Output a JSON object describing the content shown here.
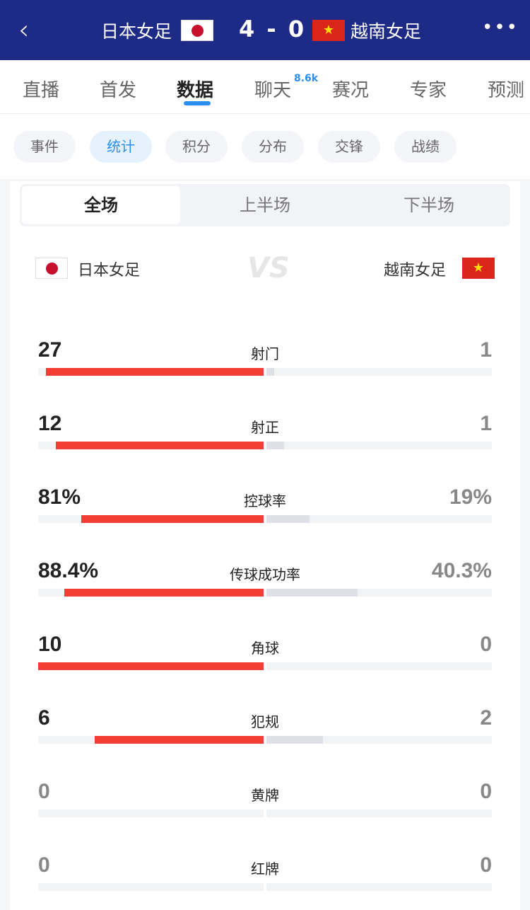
{
  "header": {
    "back_icon": "chevron-left-icon",
    "home_team": "日本女足",
    "score": "4 - 0",
    "away_team": "越南女足",
    "more_icon": "more-dots-icon"
  },
  "tabs": [
    {
      "label": "直播"
    },
    {
      "label": "首发"
    },
    {
      "label": "数据",
      "active": true
    },
    {
      "label": "聊天",
      "badge": "8.6k"
    },
    {
      "label": "赛况"
    },
    {
      "label": "专家"
    },
    {
      "label": "预测"
    }
  ],
  "chips": [
    {
      "label": "事件"
    },
    {
      "label": "统计",
      "active": true
    },
    {
      "label": "积分"
    },
    {
      "label": "分布"
    },
    {
      "label": "交锋"
    },
    {
      "label": "战绩"
    }
  ],
  "segments": [
    {
      "label": "全场",
      "active": true
    },
    {
      "label": "上半场"
    },
    {
      "label": "下半场"
    }
  ],
  "teams": {
    "home": "日本女足",
    "away": "越南女足",
    "vs": "VS"
  },
  "colors": {
    "header": "#1d2a86",
    "accent": "#2a8ff0",
    "home_bar": "#f23d35",
    "away_bar": "#dde0e5"
  },
  "stats": [
    {
      "label": "射门",
      "home": "27",
      "away": "1",
      "home_share": 0.964,
      "away_share": 0.036
    },
    {
      "label": "射正",
      "home": "12",
      "away": "1",
      "home_share": 0.923,
      "away_share": 0.077
    },
    {
      "label": "控球率",
      "home": "81%",
      "away": "19%",
      "home_share": 0.81,
      "away_share": 0.19
    },
    {
      "label": "传球成功率",
      "home": "88.4%",
      "away": "40.3%",
      "home_share": 0.884,
      "away_share": 0.403
    },
    {
      "label": "角球",
      "home": "10",
      "away": "0",
      "home_share": 1,
      "away_share": 0
    },
    {
      "label": "犯规",
      "home": "6",
      "away": "2",
      "home_share": 0.75,
      "away_share": 0.25
    },
    {
      "label": "黄牌",
      "home": "0",
      "away": "0",
      "home_share": 0,
      "away_share": 0
    },
    {
      "label": "红牌",
      "home": "0",
      "away": "0",
      "home_share": 0,
      "away_share": 0
    }
  ]
}
